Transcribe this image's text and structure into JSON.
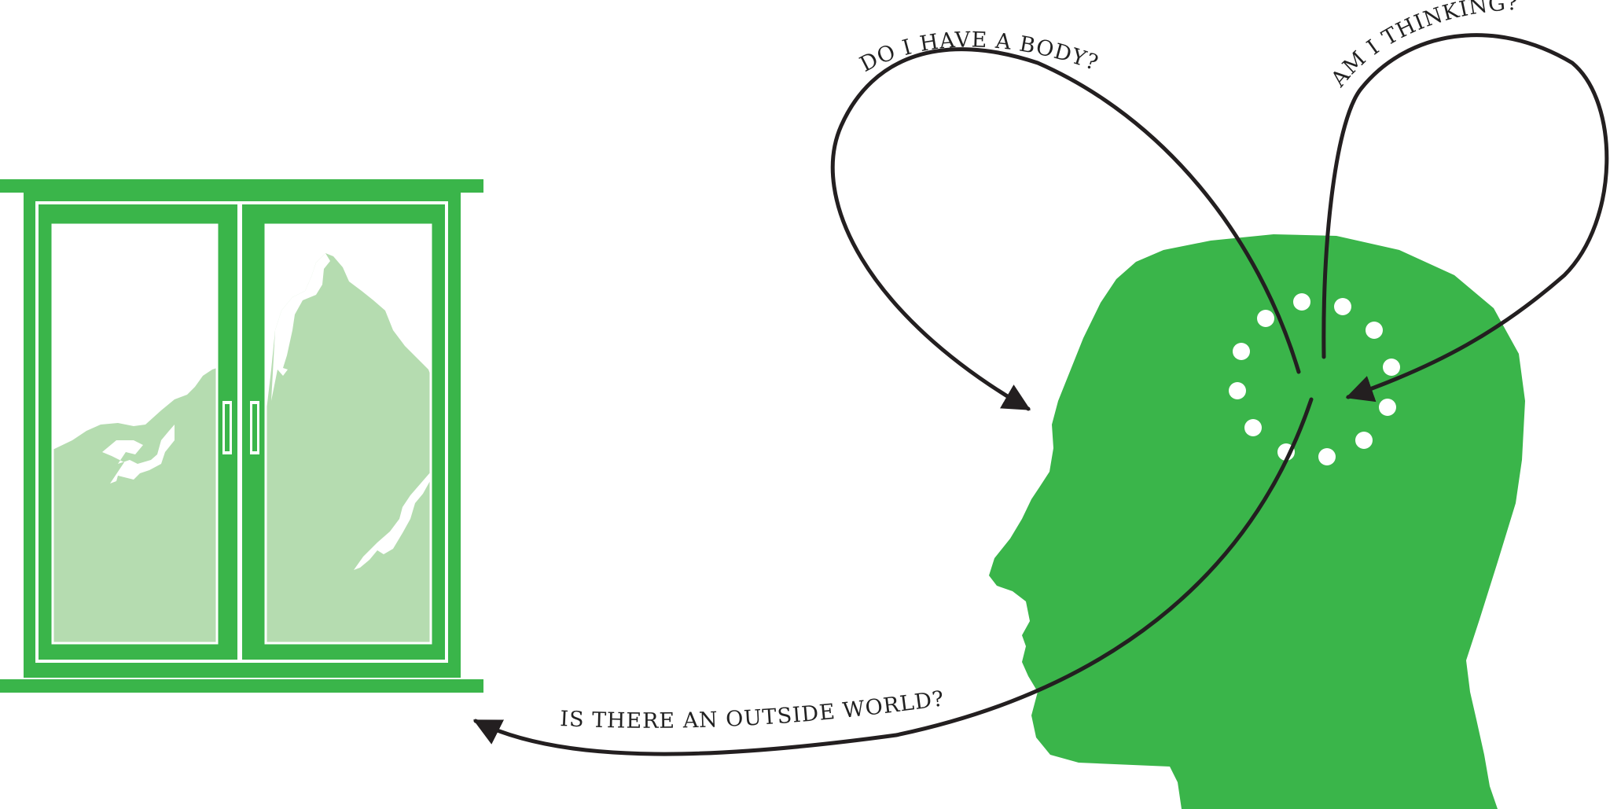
{
  "questions": {
    "body": "DO I HAVE A BODY?",
    "thinking": "AM I THINKING?",
    "world": "IS THERE AN OUTSIDE WORLD?"
  },
  "colors": {
    "green": "#3ab54a",
    "light_green": "#b5dcb0",
    "ink": "#231f20",
    "background": "#ffffff"
  },
  "icons": {
    "window": "window-icon",
    "head": "head-profile-icon",
    "mountain": "mountain-icon",
    "thought_ring": "thought-dots-icon"
  }
}
